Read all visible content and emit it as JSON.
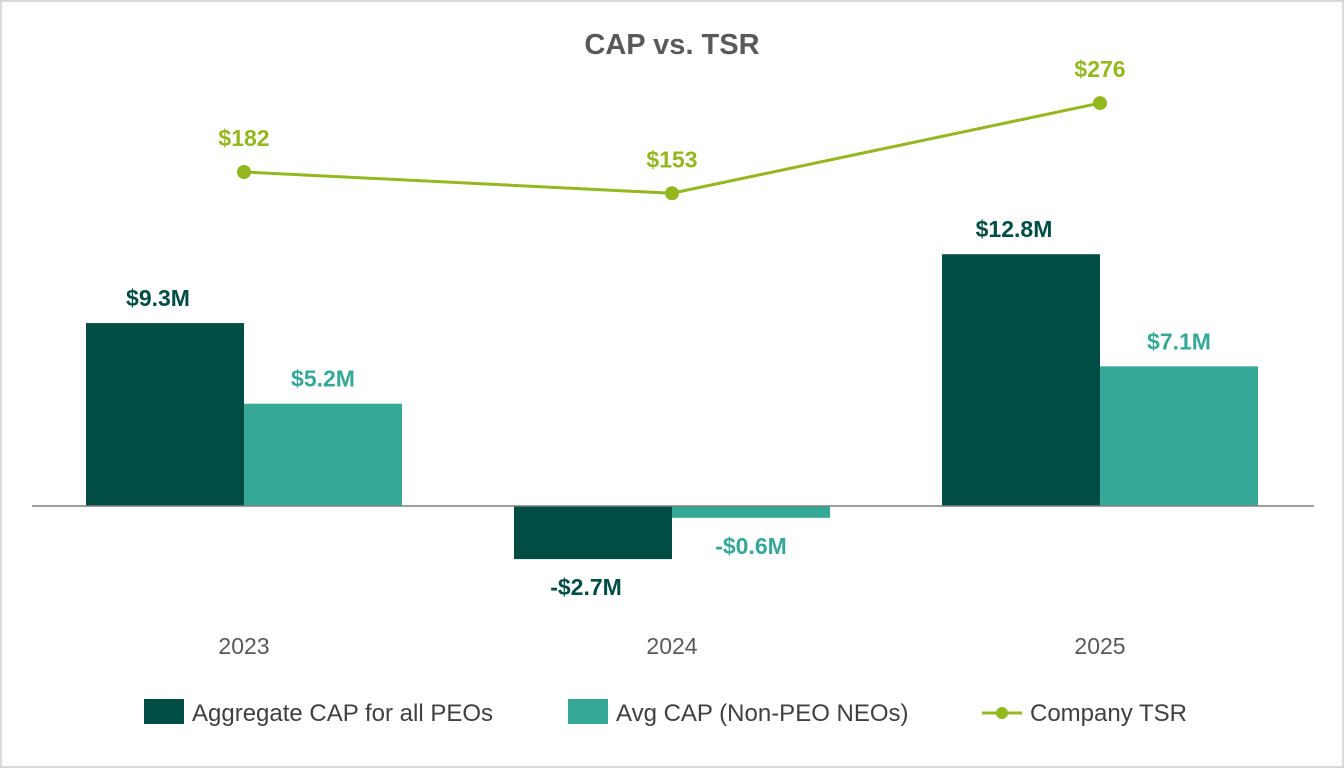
{
  "chart_data": {
    "type": "bar",
    "title": "CAP vs. TSR",
    "categories": [
      "2023",
      "2024",
      "2025"
    ],
    "series": [
      {
        "name": "Aggregate CAP for all PEOs",
        "type": "bar",
        "color": "#004d45",
        "values": [
          9.3,
          -2.7,
          12.8
        ],
        "labels": [
          "$9.3M",
          "-$2.7M",
          "$12.8M"
        ]
      },
      {
        "name": "Avg CAP (Non-PEO NEOs)",
        "type": "bar",
        "color": "#36a898",
        "values": [
          5.2,
          -0.6,
          7.1
        ],
        "labels": [
          "$5.2M",
          "-$0.6M",
          "$7.1M"
        ]
      },
      {
        "name": "Company TSR",
        "type": "line",
        "color": "#93b81f",
        "values": [
          182,
          153,
          276
        ],
        "labels": [
          "$182",
          "$153",
          "$276"
        ]
      }
    ],
    "xlabel": "",
    "ylabel": "",
    "grid": false,
    "legend_position": "bottom"
  }
}
